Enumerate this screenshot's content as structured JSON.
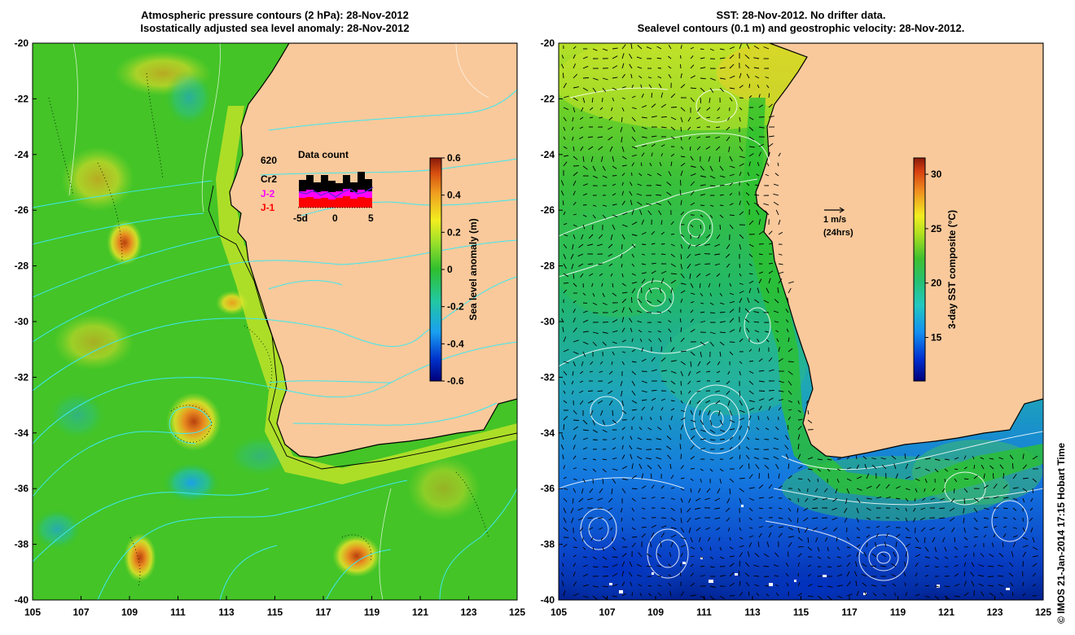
{
  "left_panel": {
    "title_line1": "Atmospheric pressure contours (2 hPa): 28-Nov-2012",
    "title_line2": "Isostatically adjusted sea level anomaly: 28-Nov-2012",
    "colorbar": {
      "label": "Sea level anomaly (m)",
      "ticks": [
        "0.6",
        "0.4",
        "0.2",
        "0",
        "-0.2",
        "-0.4",
        "-0.6"
      ],
      "range": [
        -0.6,
        0.6
      ]
    },
    "inset": {
      "title": "Data count",
      "max_count": "620",
      "series": [
        "Cr2",
        "J-2",
        "J-1"
      ],
      "series_colors": [
        "#000000",
        "#ff00ff",
        "#ff0000"
      ],
      "x_ticks": [
        "-5d",
        "0",
        "5"
      ]
    }
  },
  "right_panel": {
    "title_line1": "SST: 28-Nov-2012. No drifter data.",
    "title_line2": "Sealevel contours (0.1 m) and geostrophic velocity: 28-Nov-2012.",
    "colorbar": {
      "label": "3-day SST composite (°C)",
      "ticks": [
        "30",
        "25",
        "20",
        "15"
      ],
      "range": [
        11,
        31.5
      ]
    },
    "vector_legend": {
      "speed": "1 m/s",
      "period": "(24hrs)"
    }
  },
  "axes": {
    "lat_ticks": [
      "-20",
      "-22",
      "-24",
      "-26",
      "-28",
      "-30",
      "-32",
      "-34",
      "-36",
      "-38",
      "-40"
    ],
    "lon_ticks": [
      "105",
      "107",
      "109",
      "111",
      "113",
      "115",
      "117",
      "119",
      "121",
      "123",
      "125"
    ],
    "lat_range": [
      -40,
      -20
    ],
    "lon_range": [
      105,
      125
    ]
  },
  "credit": "© IMOS 21-Jan-2014 17:15 Hobart Time",
  "colors": {
    "land": "#f9c99b",
    "ocean_left": "#44c427",
    "ocean_right_warm": "#2fba2a",
    "ocean_right_cold": "#0a6be0"
  }
}
